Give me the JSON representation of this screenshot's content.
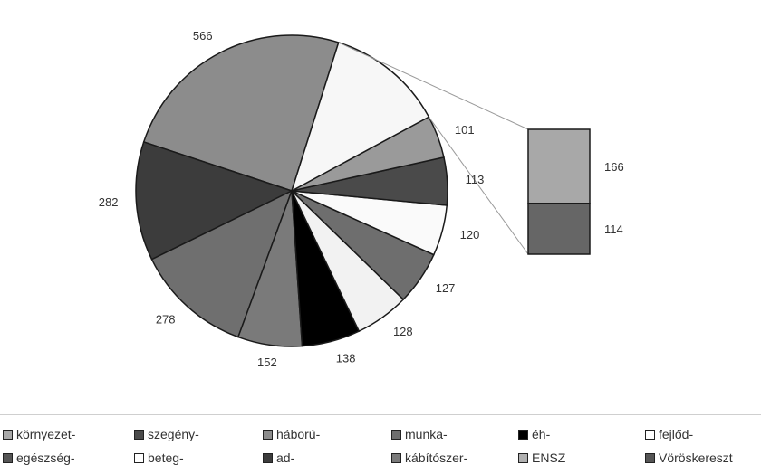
{
  "chart_data": {
    "type": "pie",
    "main_pie": {
      "slices": [
        {
          "value": 566,
          "label": "566",
          "color": "#8c8c8c"
        },
        {
          "value": 282,
          "label": "282",
          "color": "#3c3c3c"
        },
        {
          "value": 278,
          "label": "278",
          "color": "#6f6f6f"
        },
        {
          "value": 152,
          "label": "152",
          "color": "#7a7a7a"
        },
        {
          "value": 138,
          "label": "138",
          "color": "#000000"
        },
        {
          "value": 128,
          "label": "128",
          "color": "#f2f2f2"
        },
        {
          "value": 127,
          "label": "127",
          "color": "#6e6e6e"
        },
        {
          "value": 120,
          "label": "120",
          "color": "#fafafa"
        },
        {
          "value": 113,
          "label": "113",
          "color": "#4a4a4a"
        },
        {
          "value": 101,
          "label": "101",
          "color": "#9a9a9a"
        },
        {
          "value": 280,
          "label": "",
          "color": "#f7f7f7",
          "exploded": true
        }
      ]
    },
    "breakout_bar": {
      "segments": [
        {
          "value": 166,
          "label": "166",
          "color": "#a8a8a8"
        },
        {
          "value": 114,
          "label": "114",
          "color": "#666666"
        }
      ]
    },
    "legend_position": "bottom"
  },
  "legend": [
    {
      "label": "környezet-",
      "color": "#a8a8a8"
    },
    {
      "label": "szegény-",
      "color": "#4a4a4a"
    },
    {
      "label": "háború-",
      "color": "#8c8c8c"
    },
    {
      "label": "munka-",
      "color": "#6e6e6e"
    },
    {
      "label": "éh-",
      "color": "#000000"
    },
    {
      "label": "fejlőd-",
      "color": "#ffffff"
    },
    {
      "label": "egészség-",
      "color": "#555555"
    },
    {
      "label": "beteg-",
      "color": "#ffffff"
    },
    {
      "label": "ad-",
      "color": "#3c3c3c"
    },
    {
      "label": "kábítószer-",
      "color": "#7a7a7a"
    },
    {
      "label": "ENSZ",
      "color": "#b0b0b0"
    },
    {
      "label": "Vöröskereszt",
      "color": "#555555"
    }
  ]
}
